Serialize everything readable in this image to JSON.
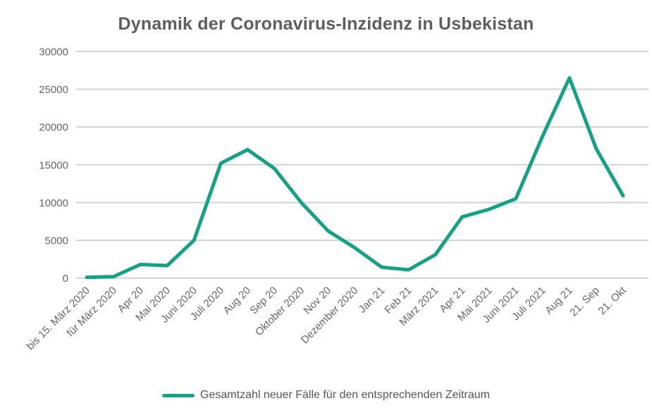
{
  "page": {
    "title": "Dynamik der Coronavirus-Inzidenz in Usbekistan"
  },
  "legend": {
    "label": "Gesamtzahl neuer Fälle für den entsprechenden Zeitraum",
    "swatch_color": "#16a085",
    "position": "bottom-center"
  },
  "chart_data": {
    "type": "line",
    "title": "Dynamik der Coronavirus-Inzidenz in Usbekistan",
    "categories": [
      "bis 15. März 2020",
      "für März 2020",
      "Apr 20",
      "Mai 2020",
      "Juni 2020",
      "Juli 2020",
      "Aug 20",
      "Sep 20",
      "Oktober 2020",
      "Nov 20",
      "Dezember 2020",
      "Jan 21",
      "Feb 21",
      "März 2021",
      "Apr 21",
      "Mai 2021",
      "Juni 2021",
      "Juli 2021",
      "Aug 21",
      "21. Sep",
      "21. Okt"
    ],
    "series": [
      {
        "name": "Gesamtzahl neuer Fälle für den entsprechenden Zeitraum",
        "values": [
          100,
          200,
          1800,
          1650,
          5000,
          15200,
          17000,
          14500,
          10000,
          6250,
          4000,
          1450,
          1100,
          3100,
          8100,
          9100,
          10500,
          18800,
          26500,
          17100,
          10900
        ]
      }
    ],
    "xlabel": "",
    "ylabel": "",
    "ylim": [
      0,
      30000
    ],
    "yticks": [
      0,
      5000,
      10000,
      15000,
      20000,
      25000,
      30000
    ],
    "ytick_labels": [
      "0",
      "5000",
      "10000",
      "15000",
      "20000",
      "25000",
      "30000"
    ],
    "grid": "horizontal",
    "legend_position": "bottom",
    "colors": {
      "line": "#16a085",
      "gridline": "#d2d2d2",
      "axis_text": "#666666",
      "title_text": "#5e5e5e"
    }
  }
}
